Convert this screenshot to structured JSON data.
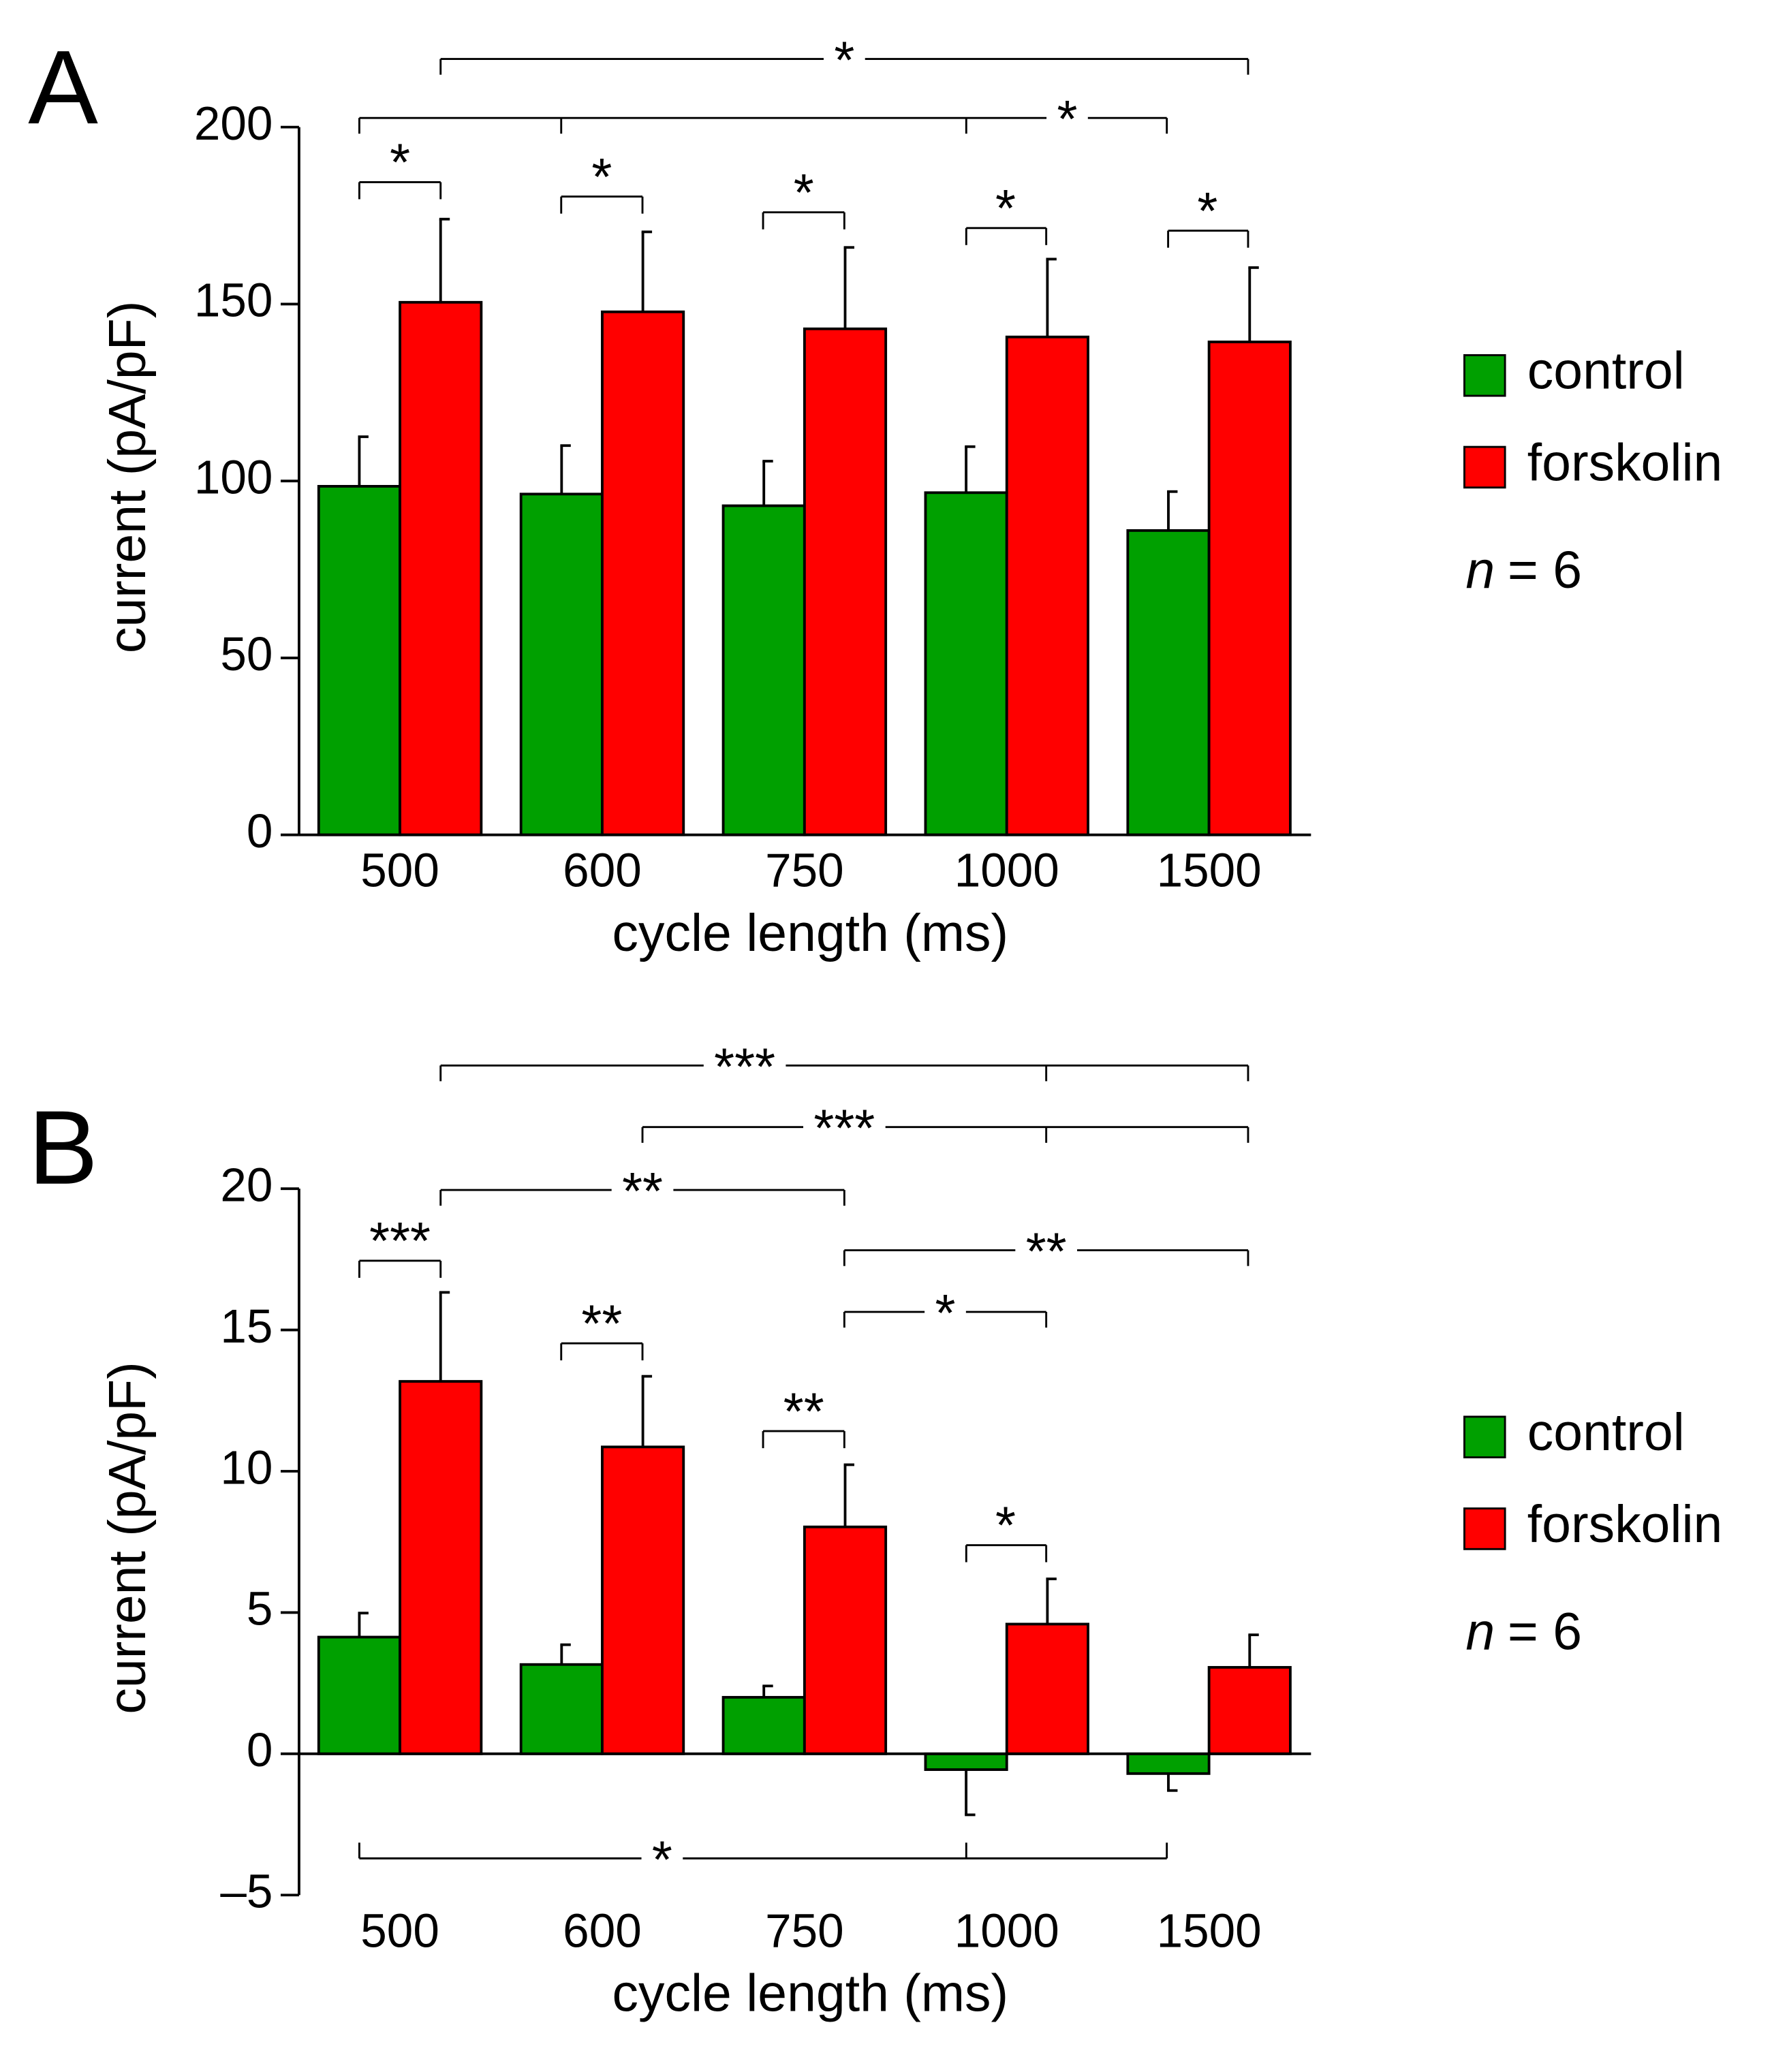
{
  "chart_data": [
    {
      "type": "bar",
      "panel": "A",
      "xlabel": "cycle length (ms)",
      "ylabel": "current (pA/pF)",
      "categories": [
        "500",
        "600",
        "750",
        "1000",
        "1500"
      ],
      "series": [
        {
          "name": "control",
          "color": "#00a000",
          "values": [
            98.5,
            96.3,
            93,
            96.7,
            86
          ],
          "errors": [
            14,
            13.7,
            12.6,
            13,
            11
          ]
        },
        {
          "name": "forskolin",
          "color": "#ff0000",
          "values": [
            150.5,
            147.8,
            143,
            140.7,
            139.3
          ],
          "errors": [
            23.5,
            22.6,
            23,
            22,
            21
          ]
        }
      ],
      "ylim": [
        0,
        200
      ],
      "yticks": [
        0,
        50,
        100,
        150,
        200
      ],
      "note_var": "n",
      "note_rest": "= 6",
      "annotations": [
        "*",
        "*",
        "*",
        "*",
        "*",
        "*",
        "*"
      ]
    },
    {
      "type": "bar",
      "panel": "B",
      "xlabel": "cycle length (ms)",
      "ylabel": "current (pA/pF)",
      "categories": [
        "500",
        "600",
        "750",
        "1000",
        "1500"
      ],
      "series": [
        {
          "name": "control",
          "color": "#00a000",
          "values": [
            4.13,
            3.16,
            2.0,
            -0.56,
            -0.7
          ],
          "errors": [
            0.85,
            0.7,
            0.4,
            1.6,
            0.6
          ]
        },
        {
          "name": "forskolin",
          "color": "#ff0000",
          "values": [
            13.18,
            10.86,
            8.03,
            4.59,
            3.06
          ],
          "errors": [
            3.15,
            2.5,
            2.2,
            1.6,
            1.15
          ]
        }
      ],
      "ylim": [
        -5,
        20
      ],
      "yticks": [
        {
          "value": -5,
          "label": "–5"
        },
        0,
        5,
        10,
        15,
        20
      ],
      "note_var": "n",
      "note_rest": "= 6",
      "annotations": [
        "***",
        "***",
        "**",
        "**",
        "*",
        "***",
        "**",
        "**",
        "*",
        "*"
      ]
    }
  ]
}
